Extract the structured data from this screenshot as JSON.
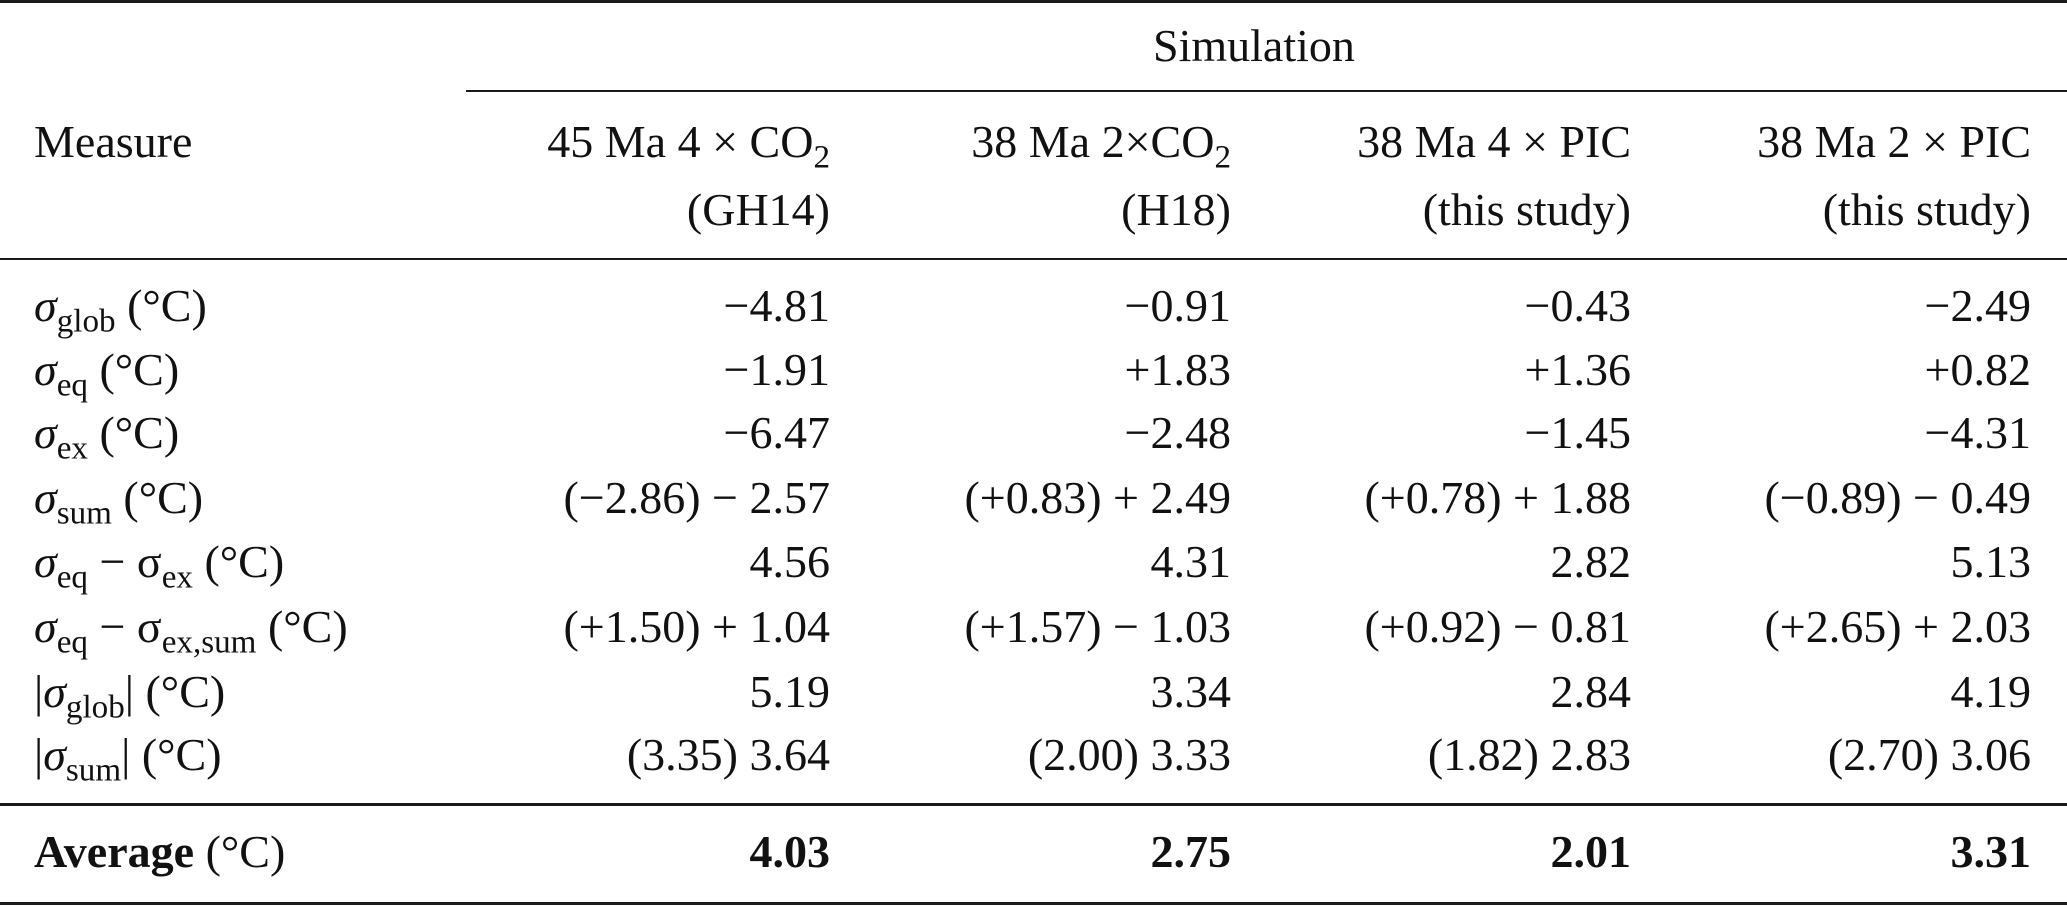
{
  "table": {
    "group_header": "Simulation",
    "measure_header": "Measure",
    "columns": [
      {
        "line1_prefix": "45 Ma 4 × CO",
        "line1_sub": "2",
        "line2": "(GH14)"
      },
      {
        "line1_prefix": "38 Ma 2×CO",
        "line1_sub": "2",
        "line2": "(H18)"
      },
      {
        "line1_prefix": "38 Ma 4 × PIC",
        "line1_sub": "",
        "line2": "(this study)"
      },
      {
        "line1_prefix": "38 Ma 2 × PIC",
        "line1_sub": "",
        "line2": "(this study)"
      }
    ],
    "rows": [
      {
        "sym": "σ",
        "sub": "glob",
        "pre": "",
        "post": " (°C)",
        "values": [
          "−4.81",
          "−0.91",
          "−0.43",
          "−2.49"
        ]
      },
      {
        "sym": "σ",
        "sub": "eq",
        "pre": "",
        "post": " (°C)",
        "values": [
          "−1.91",
          "+1.83",
          "+1.36",
          "+0.82"
        ]
      },
      {
        "sym": "σ",
        "sub": "ex",
        "pre": "",
        "post": " (°C)",
        "values": [
          "−6.47",
          "−2.48",
          "−1.45",
          "−4.31"
        ]
      },
      {
        "sym": "σ",
        "sub": "sum",
        "pre": "",
        "post": " (°C)",
        "values": [
          "(−2.86) − 2.57",
          "(+0.83) + 2.49",
          "(+0.78) + 1.88",
          "(−0.89) − 0.49"
        ]
      },
      {
        "sym": "σ",
        "sub": "eq",
        "pre": "",
        "post": " − σ",
        "sub2": "ex",
        "post2": " (°C)",
        "values": [
          "4.56",
          "4.31",
          "2.82",
          "5.13"
        ]
      },
      {
        "sym": "σ",
        "sub": "eq",
        "pre": "",
        "post": " − σ",
        "sub2": "ex,sum",
        "post2": " (°C)",
        "values": [
          "(+1.50) + 1.04",
          "(+1.57) − 1.03",
          "(+0.92) − 0.81",
          "(+2.65) + 2.03"
        ]
      },
      {
        "sym": "σ",
        "sub": "glob",
        "pre": "|",
        "post": "| (°C)",
        "values": [
          "5.19",
          "3.34",
          "2.84",
          "4.19"
        ]
      },
      {
        "sym": "σ",
        "sub": "sum",
        "pre": "|",
        "post": "| (°C)",
        "values": [
          "(3.35) 3.64",
          "(2.00) 3.33",
          "(1.82) 2.83",
          "(2.70) 3.06"
        ]
      }
    ],
    "average": {
      "label": "Average",
      "unit": " (°C)",
      "values": [
        "4.03",
        "2.75",
        "2.01",
        "3.31"
      ]
    }
  }
}
